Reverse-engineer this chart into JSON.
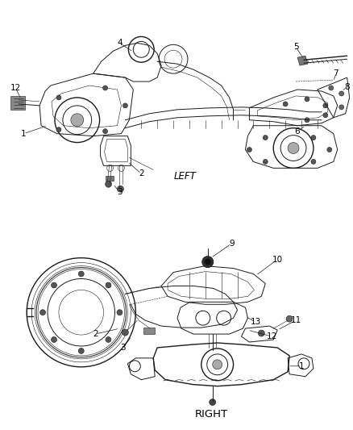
{
  "bg_color": "#ffffff",
  "line_color": "#1a1a1a",
  "label_color": "#000000",
  "left_label": "LEFT",
  "right_label": "RIGHT",
  "font_size_part": 7.5,
  "font_size_side": 8.5
}
